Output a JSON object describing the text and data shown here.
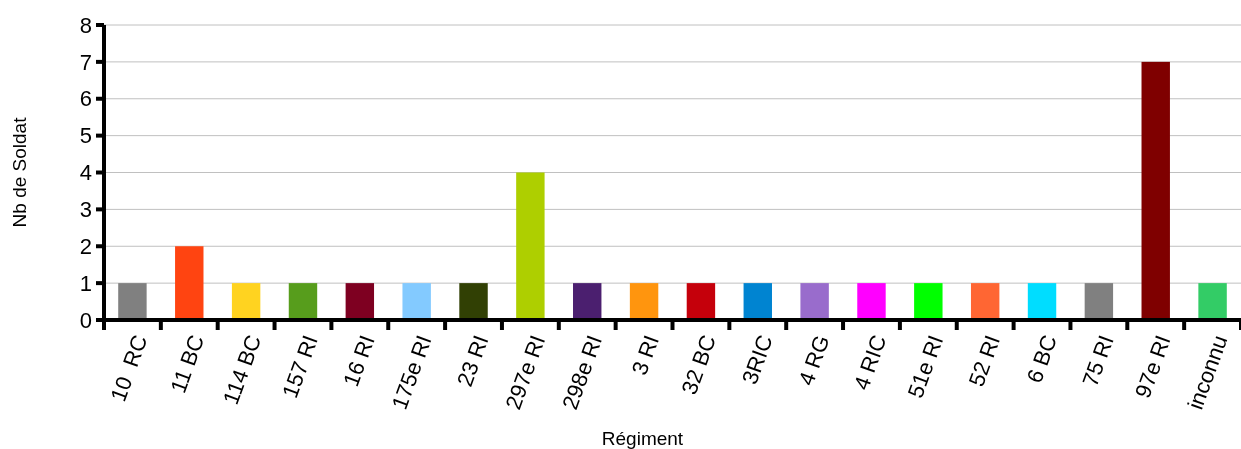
{
  "chart_data": {
    "type": "bar",
    "xlabel": "Régiment",
    "ylabel": "Nb de Soldat",
    "categories": [
      "10  RC",
      "11 BC",
      "114 BC",
      "157 RI",
      "16 RI",
      "175e RI",
      "23 RI",
      "297e RI",
      "298e RI",
      "3 RI",
      "32 BC",
      "3RIC",
      "4 RG",
      "4 RIC",
      "51e RI",
      "52 RI",
      "6 BC",
      "75 RI",
      "97e RI",
      "inconnu"
    ],
    "values": [
      1,
      2,
      1,
      1,
      1,
      1,
      1,
      4,
      1,
      1,
      1,
      1,
      1,
      1,
      1,
      1,
      1,
      1,
      7,
      1
    ],
    "colors": [
      "#808080",
      "#ff4411",
      "#ffd320",
      "#579d1c",
      "#7e0021",
      "#83caff",
      "#314004",
      "#aecf00",
      "#4b1f6f",
      "#ff950e",
      "#c5000b",
      "#0084d1",
      "#996ccc",
      "#ff00ff",
      "#00ff00",
      "#ff6633",
      "#00ddff",
      "#808080",
      "#7f0000",
      "#33cc66"
    ],
    "ylim": [
      0,
      8
    ],
    "yticks": [
      0,
      1,
      2,
      3,
      4,
      5,
      6,
      7,
      8
    ],
    "grid": "y"
  }
}
